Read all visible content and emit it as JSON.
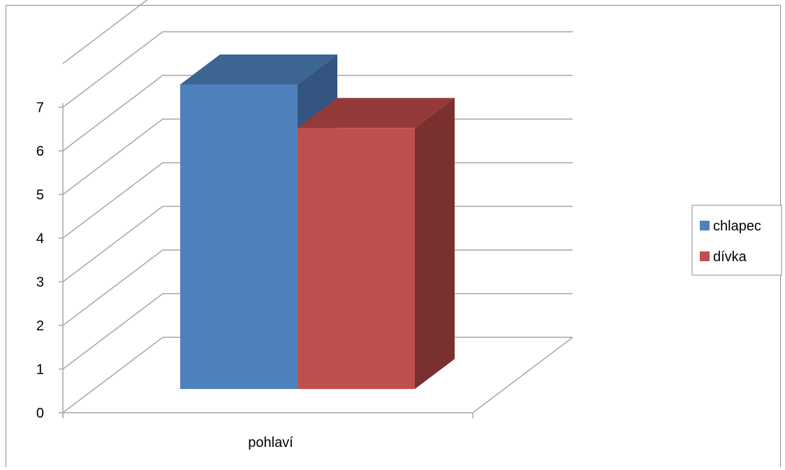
{
  "chart_data": {
    "type": "bar",
    "title": "",
    "xlabel": "",
    "ylabel": "",
    "categories": [
      "pohlaví"
    ],
    "series": [
      {
        "name": "chlapec",
        "values": [
          7
        ],
        "color": "#4F81BD",
        "top_color": "#3D6591",
        "side_color": "#335580"
      },
      {
        "name": "dívka",
        "values": [
          6
        ],
        "color": "#C0504D",
        "top_color": "#953A3A",
        "side_color": "#7A302F"
      }
    ],
    "ylim": [
      0,
      7
    ],
    "yticks": [
      "0",
      "1",
      "2",
      "3",
      "4",
      "5",
      "6",
      "7"
    ],
    "grid": true,
    "three_d": true,
    "legend_position": "right"
  }
}
